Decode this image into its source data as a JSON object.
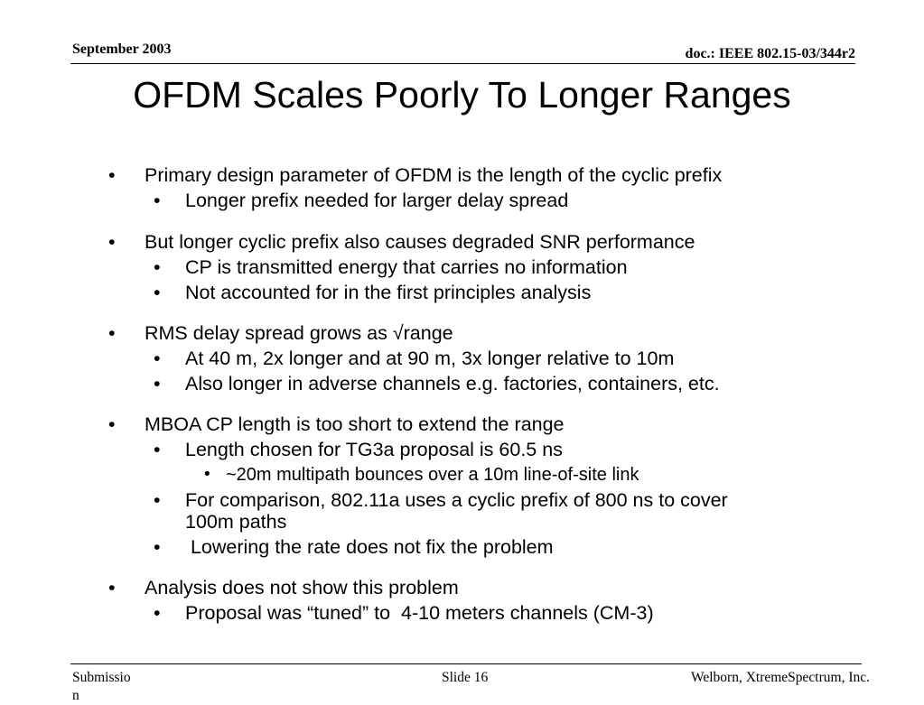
{
  "header": {
    "date": "September 2003",
    "doc": "doc.: IEEE 802.15-03/344r2"
  },
  "title": "OFDM Scales Poorly To Longer Ranges",
  "bullet_char": "•",
  "content": {
    "b1": "Primary design parameter of OFDM is the length of the cyclic prefix",
    "b1_1": "Longer prefix needed for larger delay spread",
    "b2": "But longer cyclic prefix also causes degraded SNR performance",
    "b2_1": "CP is transmitted energy that carries no information",
    "b2_2": "Not accounted for in the first principles analysis",
    "b3": "RMS delay spread grows as √range",
    "b3_1": "At 40 m, 2x longer and at 90 m, 3x longer relative to 10m",
    "b3_2": "Also longer in adverse channels e.g. factories, containers, etc.",
    "b4": "MBOA CP length is too short to extend the range",
    "b4_1": "Length chosen for TG3a proposal is 60.5 ns",
    "b4_1_1": "~20m multipath bounces over a 10m line-of-site link",
    "b4_2_line1": "For comparison, 802.11a uses a cyclic prefix of 800 ns to cover",
    "b4_2_line2": "100m paths",
    "b4_3": " Lowering the rate does not fix the problem",
    "b5": "Analysis does not show this problem",
    "b5_1": "Proposal was “tuned” to  4-10 meters channels (CM-3)"
  },
  "footer": {
    "left_line1": "Submissio",
    "left_line2": "n",
    "center": "Slide 16",
    "right": "Welborn, XtremeSpectrum, Inc."
  }
}
